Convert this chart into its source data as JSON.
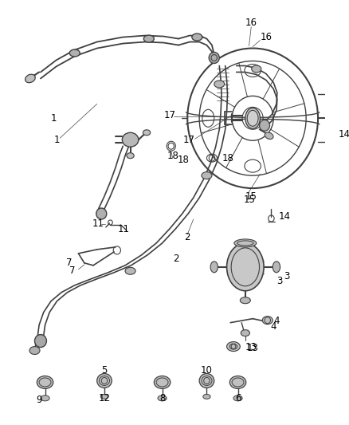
{
  "bg_color": "#ffffff",
  "fig_width": 4.38,
  "fig_height": 5.33,
  "dpi": 100,
  "line_color": "#404040",
  "text_color": "#000000",
  "font_size": 8.5
}
